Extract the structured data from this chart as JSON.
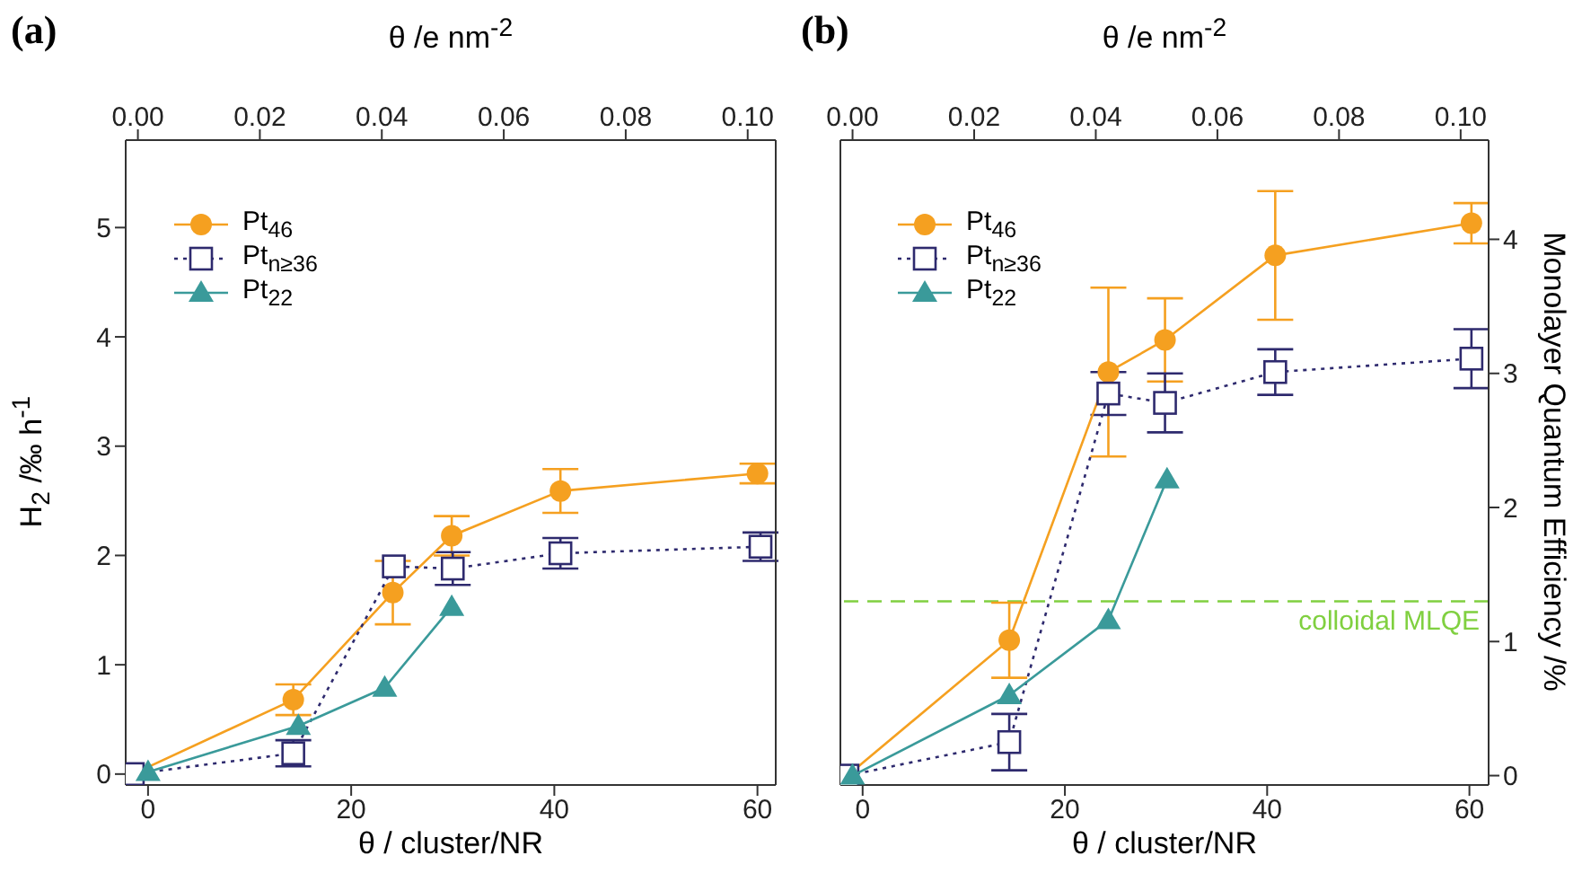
{
  "chart_data": [
    {
      "type": "line",
      "title": "(a)",
      "xlabel": "θ / cluster/NR",
      "ylabel": "H$_{2}$ /‰ h$^{-1}$",
      "x2label": "θ /e nm$^{-2}$",
      "xlim": [
        -2.2,
        61.8
      ],
      "xticks": [
        0,
        20,
        40,
        60
      ],
      "x2lim": [
        -0.002,
        0.1046
      ],
      "x2ticks": [
        {
          "value": 0,
          "label": "0.00"
        },
        {
          "value": 0.02,
          "label": "0.02"
        },
        {
          "value": 0.04,
          "label": "0.04"
        },
        {
          "value": 0.06,
          "label": "0.06"
        },
        {
          "value": 0.08,
          "label": "0.08"
        },
        {
          "value": 0.1,
          "label": "0.10"
        }
      ],
      "ylim": [
        -0.1,
        5.8
      ],
      "yticks": [
        0,
        1,
        2,
        3,
        4,
        5
      ],
      "legend": "top left",
      "grid": false,
      "series": [
        {
          "name": "Pt$_{46}$",
          "color": "#f5a020",
          "marker": "circle",
          "line_style": "solid",
          "x": [
            -1.5,
            14.3,
            24.1,
            29.9,
            40.6,
            60
          ],
          "values": [
            0,
            0.68,
            1.66,
            2.18,
            2.59,
            2.75
          ],
          "errors": [
            null,
            0.14,
            0.29,
            0.18,
            0.2,
            0.09
          ]
        },
        {
          "name": "Pt$_{n≥36}$",
          "color": "#2e2a6e",
          "marker": "square",
          "line_style": "dotted",
          "x": [
            -1.5,
            14.3,
            24.2,
            30,
            40.6,
            60.3
          ],
          "values": [
            0,
            0.19,
            1.9,
            1.88,
            2.02,
            2.08
          ],
          "errors": [
            null,
            0.12,
            null,
            0.15,
            0.14,
            0.13
          ]
        },
        {
          "name": "Pt$_{22}$",
          "color": "#3a9a9a",
          "marker": "triangle",
          "line_style": "solid",
          "x": [
            0,
            14.8,
            23.3,
            29.9
          ],
          "values": [
            0.02,
            0.44,
            0.79,
            1.53
          ]
        }
      ]
    },
    {
      "type": "line",
      "title": "(b)",
      "xlabel": "θ / cluster/NR",
      "y2label": "Monolayer Quantum Efficiency /%",
      "x2label": "θ /e nm$^{-2}$",
      "xlim": [
        -2.2,
        61.9
      ],
      "xticks": [
        0,
        20,
        40,
        60
      ],
      "x2lim": [
        -0.002,
        0.1046
      ],
      "x2ticks": [
        {
          "value": 0,
          "label": "0.00"
        },
        {
          "value": 0.02,
          "label": "0.02"
        },
        {
          "value": 0.04,
          "label": "0.04"
        },
        {
          "value": 0.06,
          "label": "0.06"
        },
        {
          "value": 0.08,
          "label": "0.08"
        },
        {
          "value": 0.1,
          "label": "0.10"
        }
      ],
      "y2lim": [
        -0.07,
        4.74
      ],
      "y2ticks": [
        0,
        1,
        2,
        3,
        4
      ],
      "legend": "top left",
      "grid": false,
      "ref_lines": [
        {
          "axis": "y2",
          "value": 1.3,
          "label": "colloidal MLQE",
          "color": "#80d040",
          "line_style": "dashed"
        }
      ],
      "series": [
        {
          "name": "Pt$_{46}$",
          "color": "#f5a020",
          "marker": "circle",
          "line_style": "solid",
          "axis": "y2",
          "x": [
            -1.5,
            14.5,
            24.3,
            29.9,
            40.8,
            60.2
          ],
          "values": [
            0,
            1.01,
            3.01,
            3.25,
            3.88,
            4.12
          ],
          "errors": [
            null,
            0.28,
            0.63,
            0.31,
            0.48,
            0.15
          ]
        },
        {
          "name": "Pt$_{n≥36}$",
          "color": "#2e2a6e",
          "marker": "square",
          "line_style": "dotted",
          "axis": "y2",
          "x": [
            -1.5,
            14.5,
            24.3,
            29.9,
            40.8,
            60.2
          ],
          "values": [
            0,
            0.25,
            2.85,
            2.78,
            3.01,
            3.11
          ],
          "errors": [
            null,
            0.21,
            0.16,
            0.22,
            0.17,
            0.22
          ]
        },
        {
          "name": "Pt$_{22}$",
          "color": "#3a9a9a",
          "marker": "triangle",
          "line_style": "solid",
          "axis": "y2",
          "x": [
            -1,
            14.5,
            24.3,
            30.1
          ],
          "values": [
            0,
            0.6,
            1.16,
            2.21
          ]
        }
      ]
    }
  ]
}
